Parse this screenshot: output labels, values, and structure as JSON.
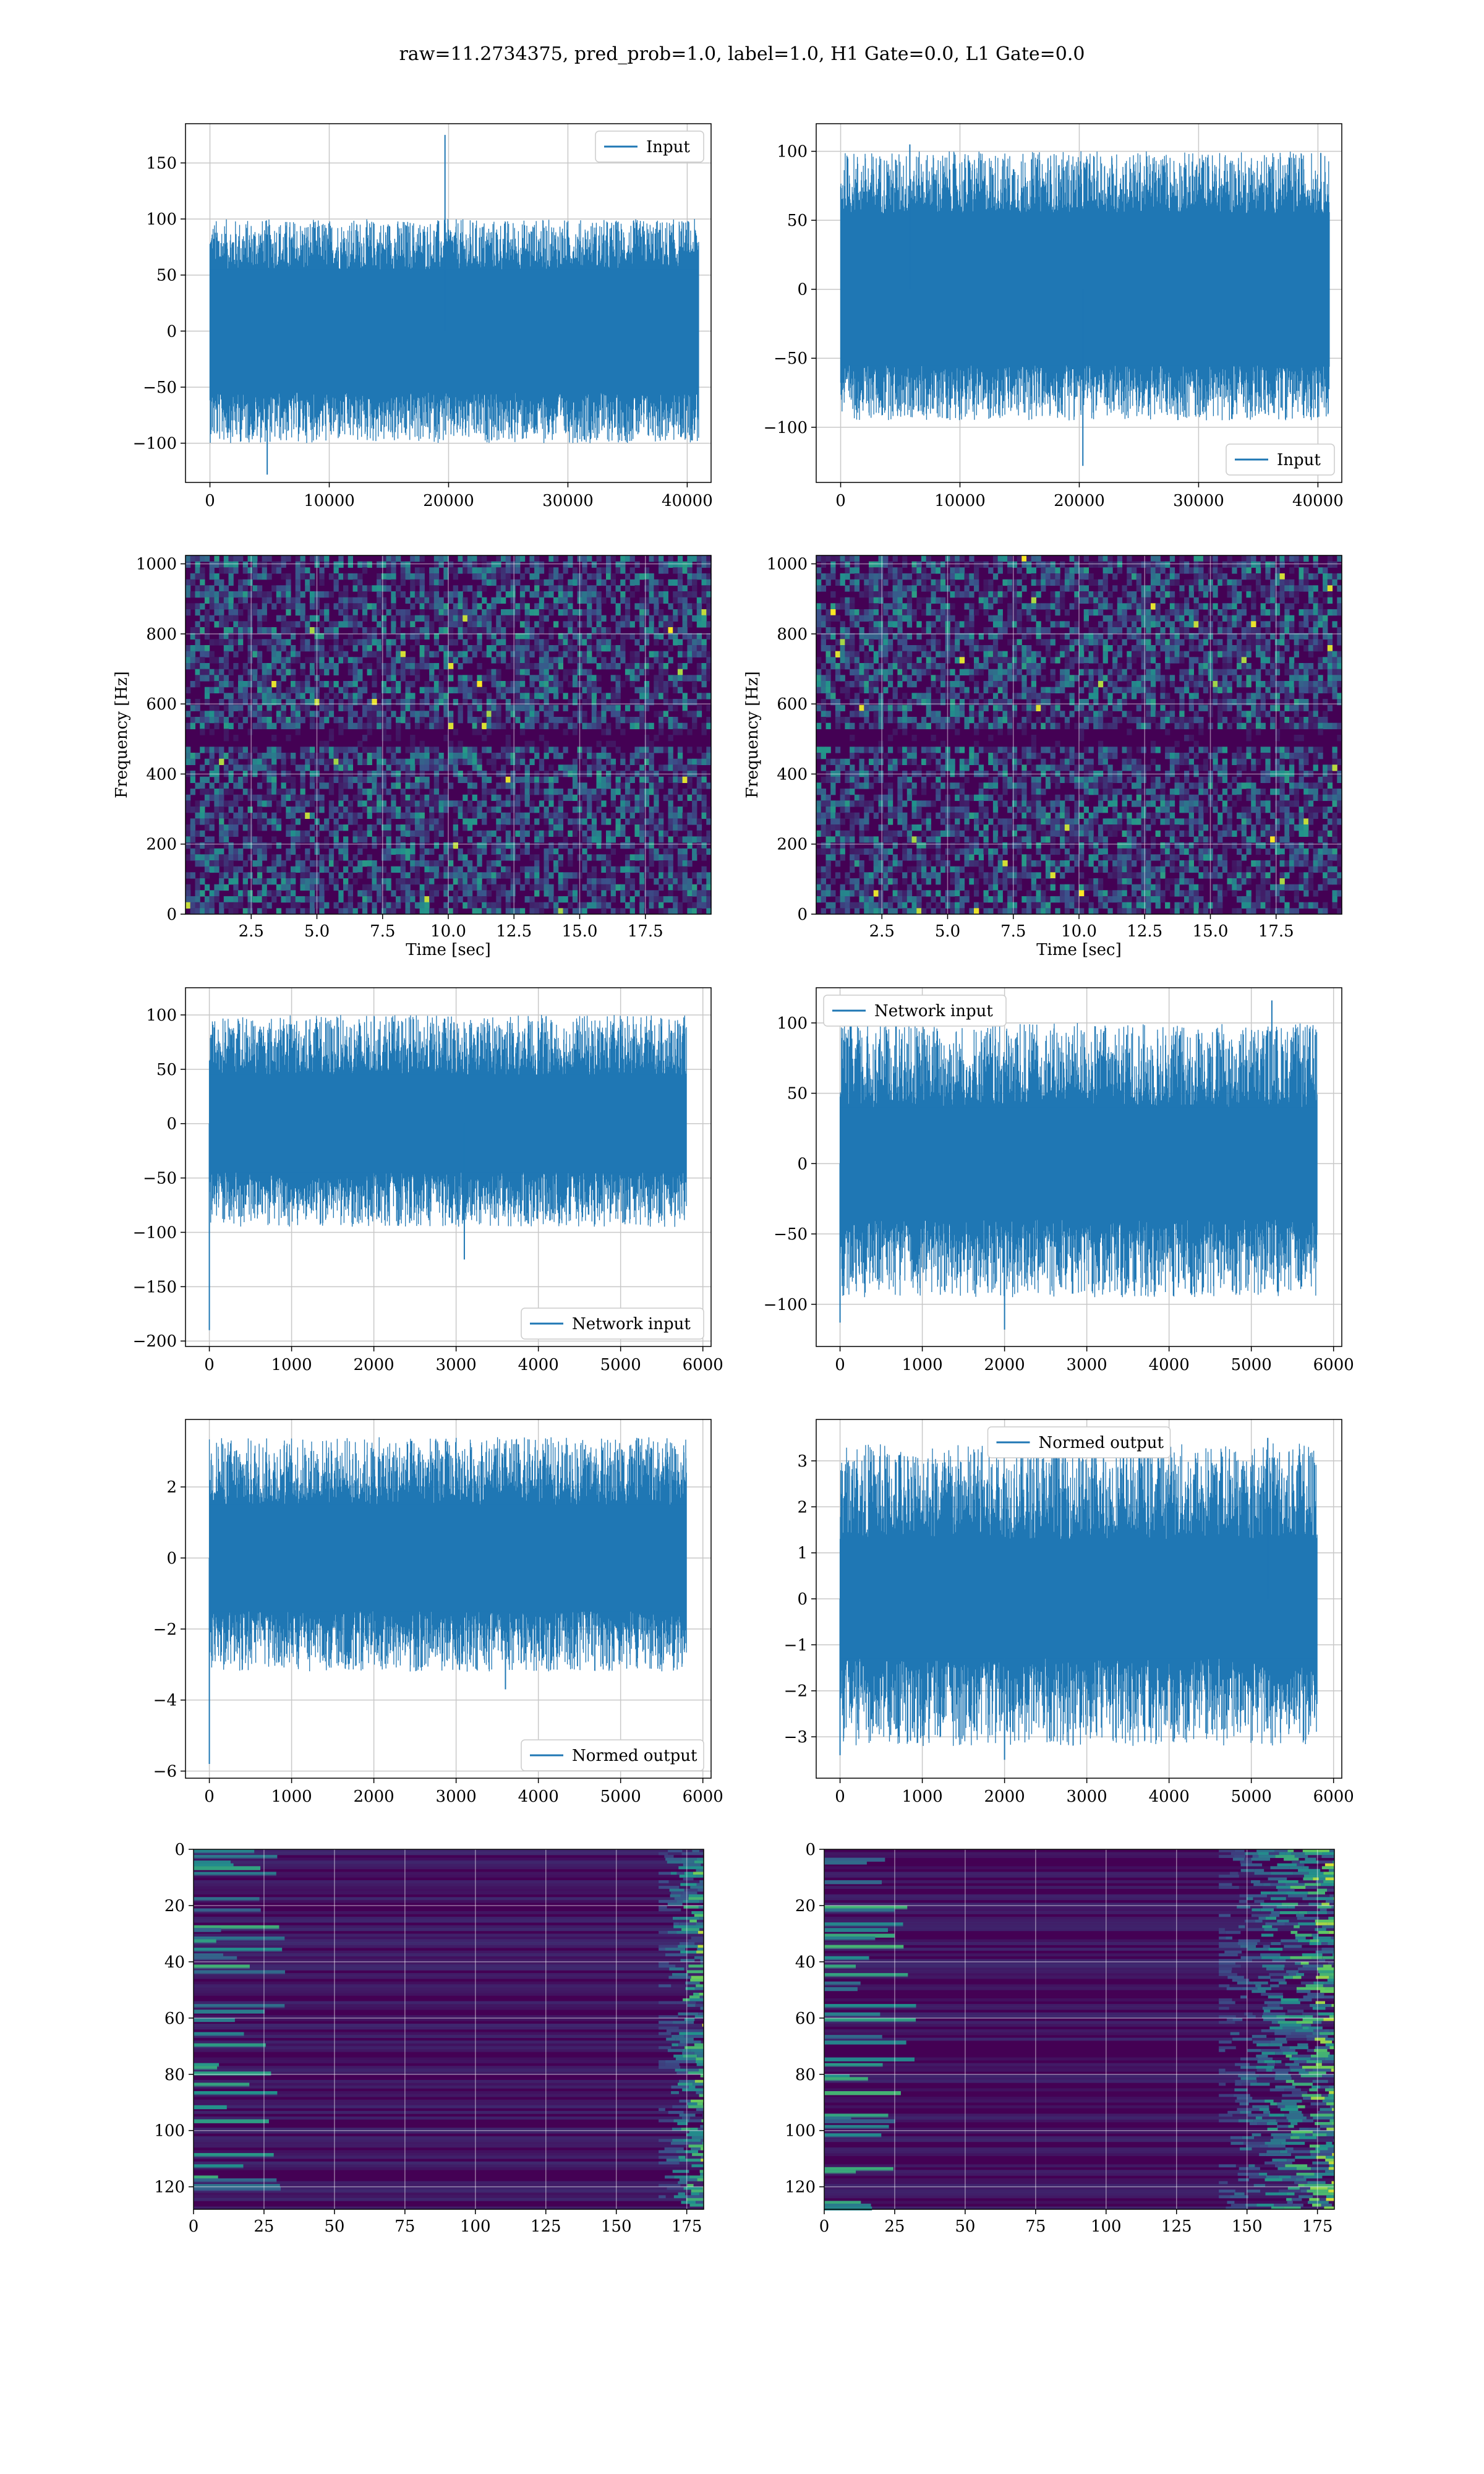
{
  "figure": {
    "title": "raw=11.2734375, pred_prob=1.0, label=1.0, H1 Gate=0.0, L1 Gate=0.0"
  },
  "colors": {
    "line": "#1f77b4",
    "grid": "#c8c8c8",
    "viridis_low": "#440154",
    "viridis_mid": "#21918c",
    "viridis_high": "#fde725"
  },
  "chart_data": [
    {
      "id": "input-h1",
      "type": "line",
      "legend": "Input",
      "legend_loc": "upper right",
      "xlim": [
        -2048,
        42000
      ],
      "ylim": [
        -135,
        185
      ],
      "xticks": [
        0,
        10000,
        20000,
        30000,
        40000
      ],
      "yticks": [
        -100,
        -50,
        0,
        50,
        100,
        150
      ],
      "series": [
        {
          "name": "Input",
          "x_range": [
            0,
            40960
          ],
          "envelope": [
            -100,
            100
          ],
          "core": [
            -55,
            55
          ],
          "peaks": [
            {
              "x": 19700,
              "y": 175
            },
            {
              "x": 4800,
              "y": -128
            }
          ]
        }
      ]
    },
    {
      "id": "input-l1",
      "type": "line",
      "legend": "Input",
      "legend_loc": "lower right",
      "xlim": [
        -2048,
        42000
      ],
      "ylim": [
        -140,
        120
      ],
      "xticks": [
        0,
        10000,
        20000,
        30000,
        40000
      ],
      "yticks": [
        -100,
        -50,
        0,
        50,
        100
      ],
      "series": [
        {
          "name": "Input",
          "x_range": [
            0,
            40960
          ],
          "envelope": [
            -95,
            100
          ],
          "core": [
            -55,
            55
          ],
          "peaks": [
            {
              "x": 5800,
              "y": 105
            },
            {
              "x": 20300,
              "y": -128
            }
          ]
        }
      ]
    },
    {
      "id": "spectrogram-h1",
      "type": "heatmap",
      "colormap": "viridis",
      "xlabel": "Time [sec]",
      "ylabel": "Frequency [Hz]",
      "xlim": [
        0,
        20
      ],
      "ylim": [
        0,
        1024
      ],
      "xticks": [
        "2.5",
        "5.0",
        "7.5",
        "10.0",
        "12.5",
        "15.0",
        "17.5"
      ],
      "yticks": [
        "0",
        "200",
        "400",
        "600",
        "800",
        "1000"
      ],
      "dark_band_hz": 512
    },
    {
      "id": "spectrogram-l1",
      "type": "heatmap",
      "colormap": "viridis",
      "xlabel": "Time [sec]",
      "ylabel": "Frequency [Hz]",
      "xlim": [
        0,
        20
      ],
      "ylim": [
        0,
        1024
      ],
      "xticks": [
        "2.5",
        "5.0",
        "7.5",
        "10.0",
        "12.5",
        "15.0",
        "17.5"
      ],
      "yticks": [
        "0",
        "200",
        "400",
        "600",
        "800",
        "1000"
      ],
      "dark_band_hz": 512
    },
    {
      "id": "network-input-h1",
      "type": "line",
      "legend": "Network input",
      "legend_loc": "lower right",
      "xlim": [
        -290,
        6100
      ],
      "ylim": [
        -205,
        125
      ],
      "xticks": [
        0,
        1000,
        2000,
        3000,
        4000,
        5000,
        6000
      ],
      "yticks": [
        -200,
        -150,
        -100,
        -50,
        0,
        50,
        100
      ],
      "series": [
        {
          "name": "Network input",
          "x_range": [
            0,
            5800
          ],
          "envelope": [
            -95,
            100
          ],
          "core": [
            -45,
            45
          ],
          "peaks": [
            {
              "x": 0,
              "y": -190
            },
            {
              "x": 3100,
              "y": -125
            }
          ]
        }
      ]
    },
    {
      "id": "network-input-l1",
      "type": "line",
      "legend": "Network input",
      "legend_loc": "upper left",
      "xlim": [
        -290,
        6100
      ],
      "ylim": [
        -130,
        125
      ],
      "xticks": [
        0,
        1000,
        2000,
        3000,
        4000,
        5000,
        6000
      ],
      "yticks": [
        -100,
        -50,
        0,
        50,
        100
      ],
      "series": [
        {
          "name": "Network input",
          "x_range": [
            0,
            5800
          ],
          "envelope": [
            -95,
            100
          ],
          "core": [
            -40,
            40
          ],
          "peaks": [
            {
              "x": 0,
              "y": -113
            },
            {
              "x": 2000,
              "y": -118
            },
            {
              "x": 5250,
              "y": 116
            }
          ]
        }
      ]
    },
    {
      "id": "normed-output-h1",
      "type": "line",
      "legend": "Normed output",
      "legend_loc": "lower right",
      "xlim": [
        -290,
        6100
      ],
      "ylim": [
        -6.2,
        3.9
      ],
      "xticks": [
        0,
        1000,
        2000,
        3000,
        4000,
        5000,
        6000
      ],
      "yticks": [
        -6,
        -4,
        -2,
        0,
        2
      ],
      "series": [
        {
          "name": "Normed output",
          "x_range": [
            0,
            5800
          ],
          "envelope": [
            -3.2,
            3.4
          ],
          "core": [
            -1.5,
            1.5
          ],
          "peaks": [
            {
              "x": 0,
              "y": -5.8
            },
            {
              "x": 3600,
              "y": -3.7
            }
          ]
        }
      ]
    },
    {
      "id": "normed-output-l1",
      "type": "line",
      "legend": "Normed output",
      "legend_loc": "upper center",
      "xlim": [
        -290,
        6100
      ],
      "ylim": [
        -3.9,
        3.9
      ],
      "xticks": [
        0,
        1000,
        2000,
        3000,
        4000,
        5000,
        6000
      ],
      "yticks": [
        -3,
        -2,
        -1,
        0,
        1,
        2,
        3
      ],
      "series": [
        {
          "name": "Normed output",
          "x_range": [
            0,
            5800
          ],
          "envelope": [
            -3.2,
            3.4
          ],
          "core": [
            -1.3,
            1.3
          ],
          "peaks": [
            {
              "x": 0,
              "y": -3.4
            },
            {
              "x": 2000,
              "y": -3.5
            },
            {
              "x": 5200,
              "y": 3.5
            }
          ]
        }
      ]
    },
    {
      "id": "feature-map-h1",
      "type": "heatmap",
      "colormap": "viridis",
      "xlim": [
        0,
        181
      ],
      "ylim": [
        128,
        0
      ],
      "xticks": [
        "0",
        "25",
        "50",
        "75",
        "100",
        "125",
        "150",
        "175"
      ],
      "yticks": [
        "0",
        "20",
        "40",
        "60",
        "80",
        "100",
        "120"
      ],
      "hot_columns": [
        165,
        181
      ]
    },
    {
      "id": "feature-map-l1",
      "type": "heatmap",
      "colormap": "viridis",
      "xlim": [
        0,
        181
      ],
      "ylim": [
        128,
        0
      ],
      "xticks": [
        "0",
        "25",
        "50",
        "75",
        "100",
        "125",
        "150",
        "175"
      ],
      "yticks": [
        "0",
        "20",
        "40",
        "60",
        "80",
        "100",
        "120"
      ],
      "hot_columns": [
        140,
        181
      ]
    }
  ]
}
